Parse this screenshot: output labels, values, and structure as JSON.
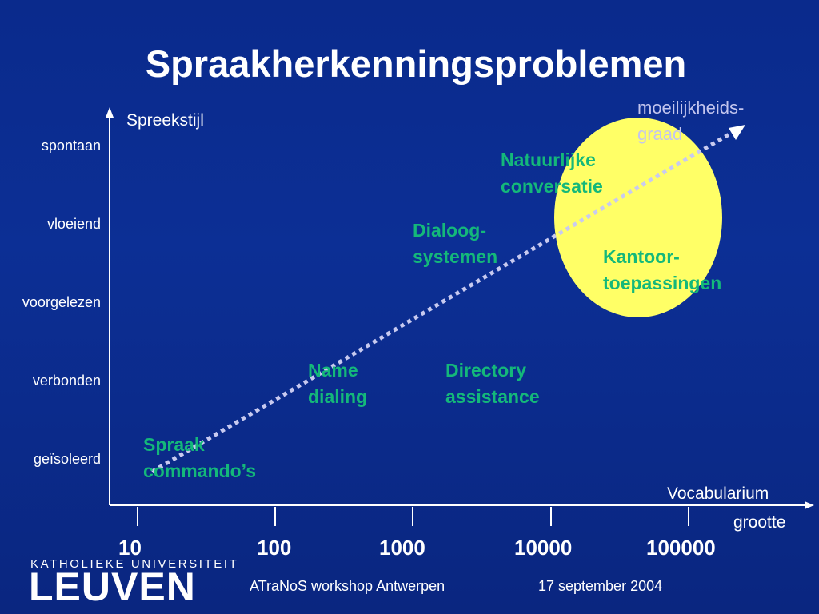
{
  "slide": {
    "title": "Spraakherkenningsproblemen"
  },
  "y_axis": {
    "title": "Spreekstijl",
    "levels": [
      "spontaan",
      "vloeiend",
      "voorgelezen",
      "verbonden",
      "geïsoleerd"
    ]
  },
  "x_axis": {
    "title_line1": "Vocabularium",
    "title_line2": "grootte",
    "ticks": [
      "10",
      "100",
      "1000",
      "10000",
      "100000"
    ]
  },
  "difficulty": {
    "line1": "moeilijkheids-",
    "line2": "graad"
  },
  "items": {
    "spraak": {
      "line1": "Spraak",
      "line2": "commando’s"
    },
    "name": {
      "line1": "Name",
      "line2": "dialing"
    },
    "directory": {
      "line1": "Directory",
      "line2": "assistance"
    },
    "dialoog": {
      "line1": "Dialoog-",
      "line2": "systemen"
    },
    "kantoor": {
      "line1": "Kantoor-",
      "line2": "toepassingen"
    },
    "natuurlijke": {
      "line1": "Natuurlijke",
      "line2": "conversatie"
    }
  },
  "footer": {
    "event": "ATraNoS workshop Antwerpen",
    "date": "17 september 2004"
  },
  "logo": {
    "top": "KATHOLIEKE UNIVERSITEIT",
    "main": "LEUVEN"
  },
  "colors": {
    "background": "#0a2a8c",
    "highlight_ellipse": "#ffff66",
    "item_text": "#14b87a",
    "difficulty_arrow": "#c8caf0",
    "axis": "#ffffff"
  }
}
